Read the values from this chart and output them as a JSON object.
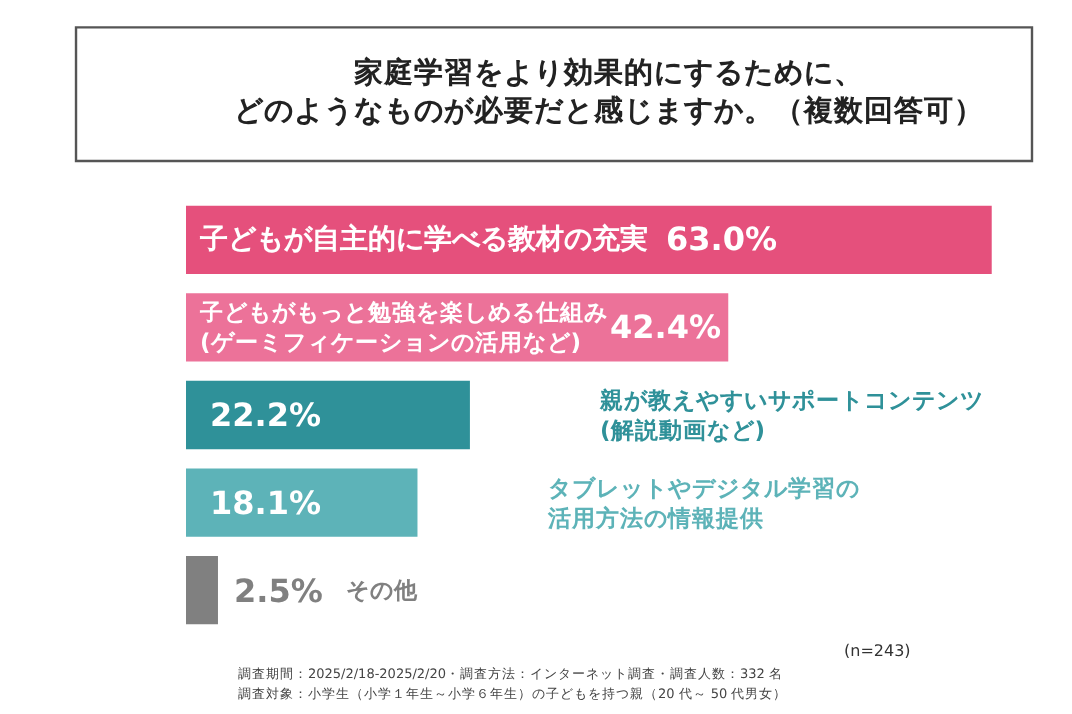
{
  "chart_data": {
    "type": "bar",
    "orientation": "horizontal",
    "title": "家庭学習をより効果的にするために、どのようなものが必要だと感じますか。（複数回答可）",
    "categories": [
      "子どもが自主的に学べる教材の充実",
      "子どもがもっと勉強を楽しめる仕組み(ゲーミフィケーションの活用など)",
      "親が教えやすいサポートコンテンツ(解説動画など)",
      "タブレットやデジタル学習の活用方法の情報提供",
      "その他"
    ],
    "values": [
      63.0,
      42.4,
      22.2,
      18.1,
      2.5
    ],
    "colors": [
      "#e5507c",
      "#ec7299",
      "#2f9199",
      "#5db3b8",
      "#808080"
    ],
    "value_labels": [
      "63.0%",
      "42.4%",
      "22.2%",
      "18.1%",
      "2.5%"
    ],
    "annotations": [
      "(n=243)",
      "調査期間：2025/2/18-2025/2/20・調査方法：インターネット調査・調査人数：332 名",
      "調査対象：小学生（小学１年生～小学６年生）の子どもを持つ親（20 代～ 50 代男女）"
    ],
    "legend": false
  }
}
